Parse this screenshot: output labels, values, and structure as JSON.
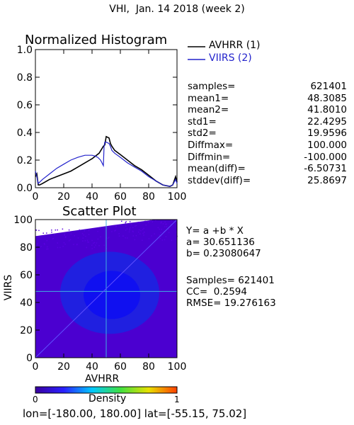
{
  "header": {
    "title": "VHI,  Jan. 14 2018 (week 2)"
  },
  "colors": {
    "series1": "#000000",
    "series2": "#2222cc",
    "scatter_line": "#40b0e0"
  },
  "chart_data": [
    {
      "type": "line",
      "title": "Normalized Histogram",
      "xlim": [
        0,
        100
      ],
      "ylim": [
        0,
        1.0
      ],
      "xticks": [
        "0",
        "20",
        "40",
        "60",
        "80",
        "100"
      ],
      "yticks": [
        "0.0",
        "0.2",
        "0.4",
        "0.6",
        "0.8",
        "1.0"
      ],
      "legend_position": "right",
      "series": [
        {
          "name": "AVHRR (1)",
          "color": "#000000",
          "x": [
            0,
            1,
            2,
            3,
            5,
            10,
            15,
            20,
            25,
            30,
            35,
            40,
            45,
            48,
            49,
            50,
            52,
            53,
            54,
            56,
            60,
            65,
            70,
            75,
            80,
            85,
            90,
            95,
            97,
            98,
            99,
            100
          ],
          "y": [
            0.08,
            0.1,
            0.02,
            0.02,
            0.03,
            0.06,
            0.08,
            0.1,
            0.12,
            0.15,
            0.18,
            0.21,
            0.25,
            0.3,
            0.31,
            0.37,
            0.36,
            0.32,
            0.3,
            0.27,
            0.24,
            0.2,
            0.16,
            0.13,
            0.09,
            0.05,
            0.02,
            0.01,
            0.02,
            0.05,
            0.08,
            0.04
          ]
        },
        {
          "name": "VIIRS (2)",
          "color": "#2222cc",
          "x": [
            0,
            1,
            2,
            3,
            5,
            10,
            15,
            20,
            25,
            30,
            35,
            40,
            42,
            44,
            46,
            47,
            48,
            48.5,
            49,
            50,
            52,
            53,
            54,
            56,
            60,
            65,
            70,
            75,
            80,
            85,
            90,
            95,
            97,
            98,
            99,
            100
          ],
          "y": [
            0.12,
            0.08,
            0.03,
            0.04,
            0.06,
            0.1,
            0.14,
            0.17,
            0.2,
            0.22,
            0.235,
            0.235,
            0.23,
            0.22,
            0.2,
            0.18,
            0.16,
            0.3,
            0.33,
            0.33,
            0.32,
            0.3,
            0.27,
            0.25,
            0.22,
            0.18,
            0.15,
            0.12,
            0.08,
            0.05,
            0.02,
            0.01,
            0.02,
            0.04,
            0.06,
            0.03
          ]
        }
      ]
    },
    {
      "type": "scatter",
      "title": "Scatter Plot",
      "xlabel": "AVHRR",
      "ylabel": "VIIRS",
      "xlim": [
        0,
        100
      ],
      "ylim": [
        0,
        100
      ],
      "xticks": [
        "0",
        "20",
        "40",
        "60",
        "80",
        "100"
      ],
      "yticks": [
        "0",
        "20",
        "40",
        "60",
        "80",
        "100"
      ],
      "samples": 621401,
      "center": [
        50,
        48
      ],
      "fit": {
        "a": 30.651136,
        "b": 0.23080647
      },
      "colorbar": {
        "label": "Density",
        "min": "0",
        "max": "1"
      }
    }
  ],
  "stats": [
    {
      "label": "samples=",
      "value": "621401"
    },
    {
      "label": "mean1=",
      "value": "48.3085"
    },
    {
      "label": "mean2=",
      "value": "41.8010"
    },
    {
      "label": "std1=",
      "value": "22.4295"
    },
    {
      "label": "std2=",
      "value": "19.9596"
    },
    {
      "label": "Diffmax=",
      "value": "100.000"
    },
    {
      "label": "Diffmin=",
      "value": "-100.000"
    },
    {
      "label": "mean(diff)=",
      "value": "-6.50731"
    },
    {
      "label": "stddev(diff)=",
      "value": "25.8697"
    }
  ],
  "regression": {
    "equation": "Y= a +b * X",
    "a_line": "a= 30.651136",
    "b_line": "b= 0.23080647",
    "samples_line": "Samples= 621401",
    "cc_line": "CC=  0.2594",
    "rmse_line": "RMSE= 19.276163"
  },
  "footer": {
    "coords": "lon=[-180.00, 180.00] lat=[-55.15, 75.02]"
  }
}
